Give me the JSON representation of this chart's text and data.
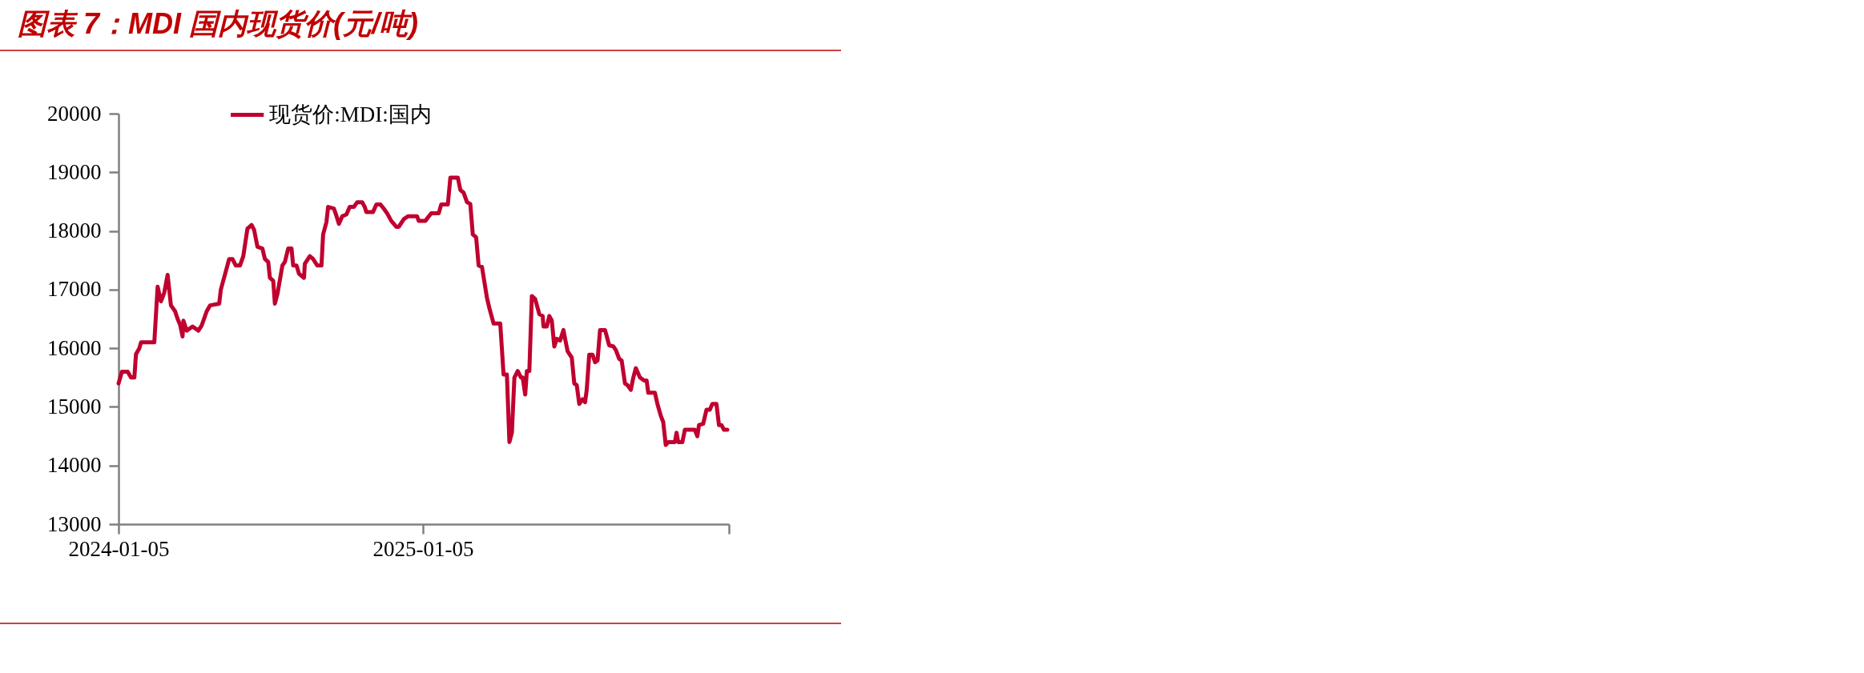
{
  "chart_data": {
    "type": "line",
    "title": "图表 7：MDI 国内现货价(元/吨)",
    "x": [
      "2024-01-05",
      "2024-01-09",
      "2024-01-16",
      "2024-01-20",
      "2024-01-24",
      "2024-01-26",
      "2024-01-30",
      "2024-02-01",
      "2024-02-17",
      "2024-02-21",
      "2024-02-25",
      "2024-02-29",
      "2024-03-04",
      "2024-03-08",
      "2024-03-13",
      "2024-03-16",
      "2024-03-19",
      "2024-03-22",
      "2024-03-23",
      "2024-03-27",
      "2024-04-03",
      "2024-04-10",
      "2024-04-14",
      "2024-04-20",
      "2024-04-24",
      "2024-05-05",
      "2024-05-07",
      "2024-05-12",
      "2024-05-17",
      "2024-05-21",
      "2024-05-25",
      "2024-05-30",
      "2024-06-03",
      "2024-06-08",
      "2024-06-13",
      "2024-06-16",
      "2024-06-20",
      "2024-06-26",
      "2024-06-29",
      "2024-07-03",
      "2024-07-05",
      "2024-07-09",
      "2024-07-11",
      "2024-07-14",
      "2024-07-20",
      "2024-07-23",
      "2024-07-27",
      "2024-07-31",
      "2024-08-02",
      "2024-08-06",
      "2024-08-09",
      "2024-08-15",
      "2024-08-16",
      "2024-08-22",
      "2024-08-26",
      "2024-08-31",
      "2024-09-05",
      "2024-09-07",
      "2024-09-11",
      "2024-09-13",
      "2024-09-20",
      "2024-09-22",
      "2024-09-26",
      "2024-09-30",
      "2024-10-05",
      "2024-10-09",
      "2024-10-14",
      "2024-10-18",
      "2024-10-24",
      "2024-10-27",
      "2024-10-29",
      "2024-11-06",
      "2024-11-10",
      "2024-11-15",
      "2024-11-19",
      "2024-11-23",
      "2024-11-28",
      "2024-12-04",
      "2024-12-07",
      "2024-12-13",
      "2024-12-18",
      "2024-12-29",
      "2024-12-31",
      "2025-01-08",
      "2025-01-11",
      "2025-01-15",
      "2025-01-24",
      "2025-01-27",
      "2025-02-04",
      "2025-02-07",
      "2025-02-16",
      "2025-02-19",
      "2025-02-23",
      "2025-02-27",
      "2025-03-03",
      "2025-03-06",
      "2025-03-10",
      "2025-03-13",
      "2025-03-17",
      "2025-03-23",
      "2025-03-26",
      "2025-03-31",
      "2025-04-08",
      "2025-04-12",
      "2025-04-16",
      "2025-04-19",
      "2025-04-22",
      "2025-04-25",
      "2025-04-29",
      "2025-05-03",
      "2025-05-05",
      "2025-05-08",
      "2025-05-10",
      "2025-05-13",
      "2025-05-16",
      "2025-05-20",
      "2025-05-25",
      "2025-05-29",
      "2025-05-30",
      "2025-06-03",
      "2025-06-06",
      "2025-06-09",
      "2025-06-12",
      "2025-06-15",
      "2025-06-19",
      "2025-06-23",
      "2025-06-25",
      "2025-06-28",
      "2025-07-03",
      "2025-07-06",
      "2025-07-09",
      "2025-07-12",
      "2025-07-16",
      "2025-07-19",
      "2025-07-21",
      "2025-07-24",
      "2025-07-28",
      "2025-07-31",
      "2025-08-03",
      "2025-08-06",
      "2025-08-12",
      "2025-08-17",
      "2025-08-22",
      "2025-08-25",
      "2025-08-29",
      "2025-09-01",
      "2025-09-05",
      "2025-09-08",
      "2025-09-12",
      "2025-09-15",
      "2025-09-18",
      "2025-09-23",
      "2025-09-28",
      "2025-10-01",
      "2025-10-03",
      "2025-10-11",
      "2025-10-14",
      "2025-10-18",
      "2025-10-21",
      "2025-10-24",
      "2025-10-27",
      "2025-11-04",
      "2025-11-06",
      "2025-11-08",
      "2025-11-13",
      "2025-11-16",
      "2025-11-28",
      "2025-12-01",
      "2025-12-03",
      "2025-12-08",
      "2025-12-12",
      "2025-12-16",
      "2025-12-19",
      "2025-12-24",
      "2025-12-27",
      "2025-12-30",
      "2026-01-02",
      "2026-01-06"
    ],
    "series": [
      {
        "name": "现货价:MDI:国内",
        "color": "#c0002f",
        "values": [
          15400,
          15600,
          15600,
          15500,
          15500,
          15900,
          16000,
          16100,
          16100,
          17050,
          16800,
          16950,
          17250,
          16730,
          16630,
          16500,
          16400,
          16200,
          16470,
          16300,
          16370,
          16300,
          16390,
          16630,
          16730,
          16760,
          17000,
          17260,
          17520,
          17520,
          17410,
          17410,
          17570,
          18040,
          18100,
          18020,
          17730,
          17700,
          17520,
          17470,
          17200,
          17150,
          16760,
          16920,
          17410,
          17470,
          17700,
          17700,
          17410,
          17410,
          17270,
          17200,
          17440,
          17570,
          17520,
          17410,
          17410,
          17940,
          18150,
          18410,
          18380,
          18300,
          18120,
          18250,
          18280,
          18410,
          18410,
          18490,
          18490,
          18410,
          18320,
          18320,
          18450,
          18450,
          18380,
          18300,
          18170,
          18070,
          18070,
          18200,
          18250,
          18250,
          18170,
          18170,
          18230,
          18300,
          18300,
          18450,
          18450,
          18910,
          18910,
          18700,
          18650,
          18490,
          18460,
          17940,
          17890,
          17410,
          17390,
          16860,
          16680,
          16420,
          16420,
          15550,
          15550,
          14400,
          14560,
          15500,
          15610,
          15500,
          15500,
          15210,
          15610,
          15610,
          16890,
          16840,
          16580,
          16550,
          16370,
          16370,
          16550,
          16470,
          16030,
          16160,
          16130,
          16310,
          16160,
          15950,
          15840,
          15400,
          15370,
          15050,
          15130,
          15080,
          15290,
          15890,
          15890,
          15760,
          15790,
          16310,
          16310,
          16050,
          16030,
          15970,
          15820,
          15790,
          15400,
          15370,
          15290,
          15500,
          15660,
          15500,
          15450,
          15450,
          15240,
          15240,
          15050,
          14850,
          14740,
          14350,
          14400,
          14400,
          14560,
          14400,
          14400,
          14610,
          14610,
          14500,
          14690,
          14710,
          14950,
          14950,
          15050,
          15050,
          14690,
          14690,
          14610,
          14610
        ]
      }
    ],
    "xlim": [
      "2024-01-05",
      "2026-01-08"
    ],
    "xticks": [
      "2024-01-05",
      "2025-01-05",
      {
        "value": "2026-01-08",
        "label": null
      }
    ],
    "ylim": [
      13000,
      20000
    ],
    "yticks": [
      13000,
      14000,
      15000,
      16000,
      17000,
      18000,
      19000,
      20000
    ],
    "legend": "top"
  }
}
